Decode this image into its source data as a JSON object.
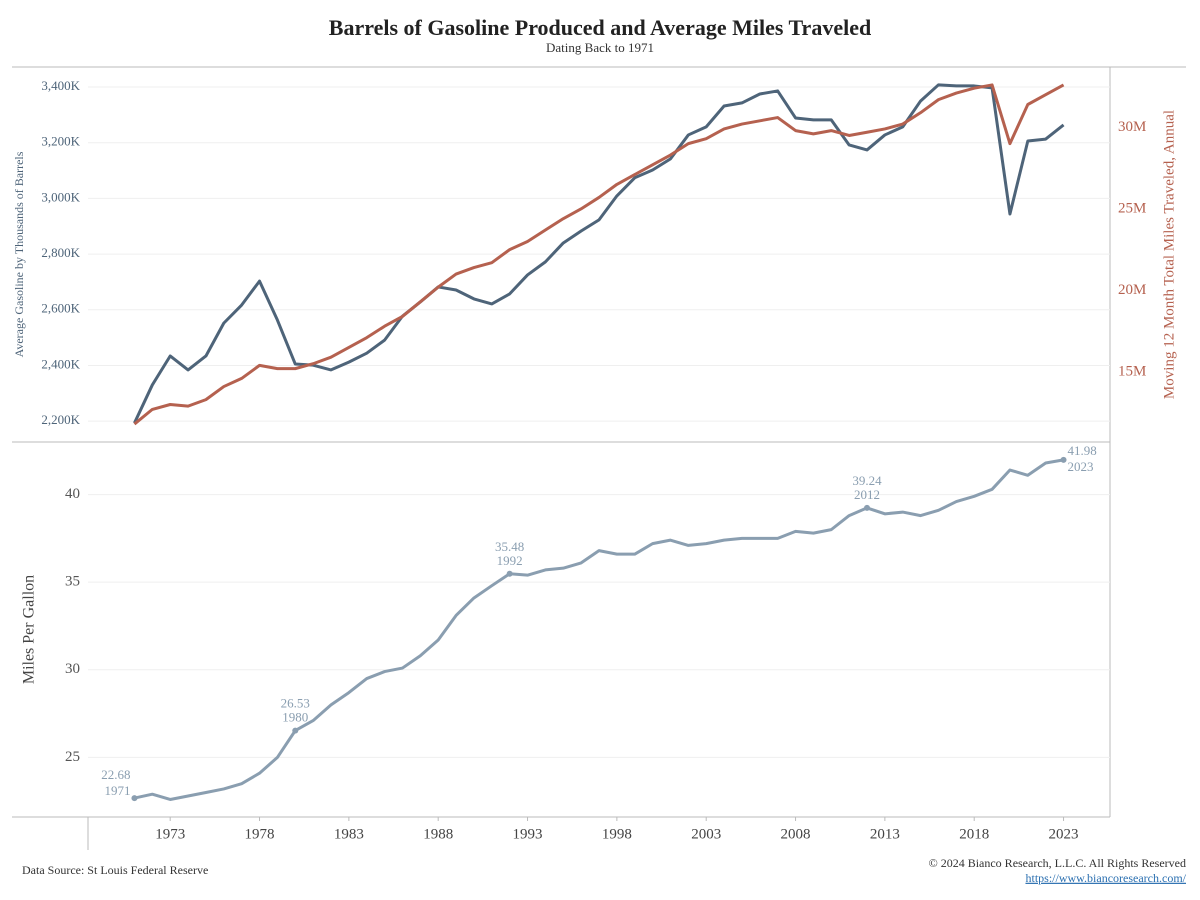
{
  "header": {
    "title": "Barrels of Gasoline Produced and Average Miles Traveled",
    "subtitle": "Dating Back to 1971"
  },
  "footer": {
    "source": "Data Source: St Louis Federal Reserve",
    "copyright": "© 2024 Bianco Research, L.L.C. All Rights Reserved",
    "url": "https://www.biancoresearch.com/"
  },
  "chart_data": [
    {
      "type": "line",
      "x": [
        1971,
        1972,
        1973,
        1974,
        1975,
        1976,
        1977,
        1978,
        1979,
        1980,
        1981,
        1982,
        1983,
        1984,
        1985,
        1986,
        1987,
        1988,
        1989,
        1990,
        1991,
        1992,
        1993,
        1994,
        1995,
        1996,
        1997,
        1998,
        1999,
        2000,
        2001,
        2002,
        2003,
        2004,
        2005,
        2006,
        2007,
        2008,
        2009,
        2010,
        2011,
        2012,
        2013,
        2014,
        2015,
        2016,
        2017,
        2018,
        2019,
        2020,
        2021,
        2022,
        2023
      ],
      "xlim": [
        1968.4,
        2025.6
      ],
      "series": [
        {
          "name": "Average Gasoline by Thousands of Barrels",
          "color": "#4e6479",
          "values": [
            2193,
            2330,
            2434,
            2384,
            2434,
            2552,
            2617,
            2703,
            2563,
            2405,
            2401,
            2384,
            2412,
            2444,
            2491,
            2577,
            2628,
            2682,
            2671,
            2639,
            2621,
            2657,
            2725,
            2772,
            2840,
            2883,
            2923,
            3009,
            3074,
            3102,
            3142,
            3228,
            3257,
            3332,
            3343,
            3375,
            3386,
            3289,
            3282,
            3282,
            3192,
            3174,
            3228,
            3257,
            3350,
            3408,
            3404,
            3404,
            3397,
            2944,
            3206,
            3213,
            3264
          ]
        },
        {
          "name": "Moving 12 Month Total Miles Traveled, Annual",
          "color": "#b5614f",
          "axis": "y2",
          "values": [
            11.8,
            12.7,
            13.0,
            12.9,
            13.3,
            14.1,
            14.6,
            15.4,
            15.2,
            15.2,
            15.5,
            15.9,
            16.5,
            17.1,
            17.8,
            18.4,
            19.3,
            20.2,
            21.0,
            21.4,
            21.7,
            22.5,
            23.0,
            23.7,
            24.4,
            25.0,
            25.7,
            26.5,
            27.1,
            27.7,
            28.3,
            29.0,
            29.3,
            29.9,
            30.2,
            30.4,
            30.6,
            29.8,
            29.6,
            29.8,
            29.5,
            29.7,
            29.9,
            30.2,
            30.9,
            31.7,
            32.1,
            32.4,
            32.6,
            29.0,
            31.4,
            32.0,
            32.6
          ]
        }
      ],
      "ylim": [
        2125,
        3472
      ],
      "yticks": [
        {
          "value": 2200,
          "label": "2,200K"
        },
        {
          "value": 2400,
          "label": "2,400K"
        },
        {
          "value": 2600,
          "label": "2,600K"
        },
        {
          "value": 2800,
          "label": "2,800K"
        },
        {
          "value": 3000,
          "label": "3,000K"
        },
        {
          "value": 3200,
          "label": "3,200K"
        },
        {
          "value": 3400,
          "label": "3,400K"
        }
      ],
      "y2lim": [
        10.7,
        33.7
      ],
      "y2ticks": [
        {
          "value": 15,
          "label": "15M"
        },
        {
          "value": 20,
          "label": "20M"
        },
        {
          "value": 25,
          "label": "25M"
        },
        {
          "value": 30,
          "label": "30M"
        }
      ],
      "grid": true
    },
    {
      "type": "line",
      "x": [
        1971,
        1972,
        1973,
        1974,
        1975,
        1976,
        1977,
        1978,
        1979,
        1980,
        1981,
        1982,
        1983,
        1984,
        1985,
        1986,
        1987,
        1988,
        1989,
        1990,
        1991,
        1992,
        1993,
        1994,
        1995,
        1996,
        1997,
        1998,
        1999,
        2000,
        2001,
        2002,
        2003,
        2004,
        2005,
        2006,
        2007,
        2008,
        2009,
        2010,
        2011,
        2012,
        2013,
        2014,
        2015,
        2016,
        2017,
        2018,
        2019,
        2020,
        2021,
        2022,
        2023
      ],
      "xlim": [
        1968.4,
        2025.6
      ],
      "xticks": [
        1973,
        1978,
        1983,
        1988,
        1993,
        1998,
        2003,
        2008,
        2013,
        2018,
        2023
      ],
      "ylabel": "Miles Per Gallon",
      "series": [
        {
          "color": "#8a9eb0",
          "values": [
            22.68,
            22.9,
            22.6,
            22.8,
            23.0,
            23.2,
            23.5,
            24.1,
            25.0,
            26.53,
            27.1,
            28.0,
            28.7,
            29.5,
            29.9,
            30.1,
            30.8,
            31.7,
            33.1,
            34.1,
            34.8,
            35.48,
            35.4,
            35.7,
            35.8,
            36.1,
            36.8,
            36.6,
            36.6,
            37.2,
            37.4,
            37.1,
            37.2,
            37.4,
            37.5,
            37.5,
            37.5,
            37.9,
            37.8,
            38.0,
            38.8,
            39.24,
            38.9,
            39.0,
            38.8,
            39.1,
            39.6,
            39.9,
            40.3,
            41.4,
            41.1,
            41.8,
            41.98
          ]
        }
      ],
      "ylim": [
        21.6,
        43.0
      ],
      "yticks": [
        25,
        30,
        35,
        40
      ],
      "grid": true,
      "annotations": [
        {
          "x": 1971,
          "value": 22.68
        },
        {
          "x": 1980,
          "value": 26.53
        },
        {
          "x": 1992,
          "value": 35.48
        },
        {
          "x": 2012,
          "value": 39.24
        },
        {
          "x": 2023,
          "value": 41.98
        }
      ]
    }
  ]
}
